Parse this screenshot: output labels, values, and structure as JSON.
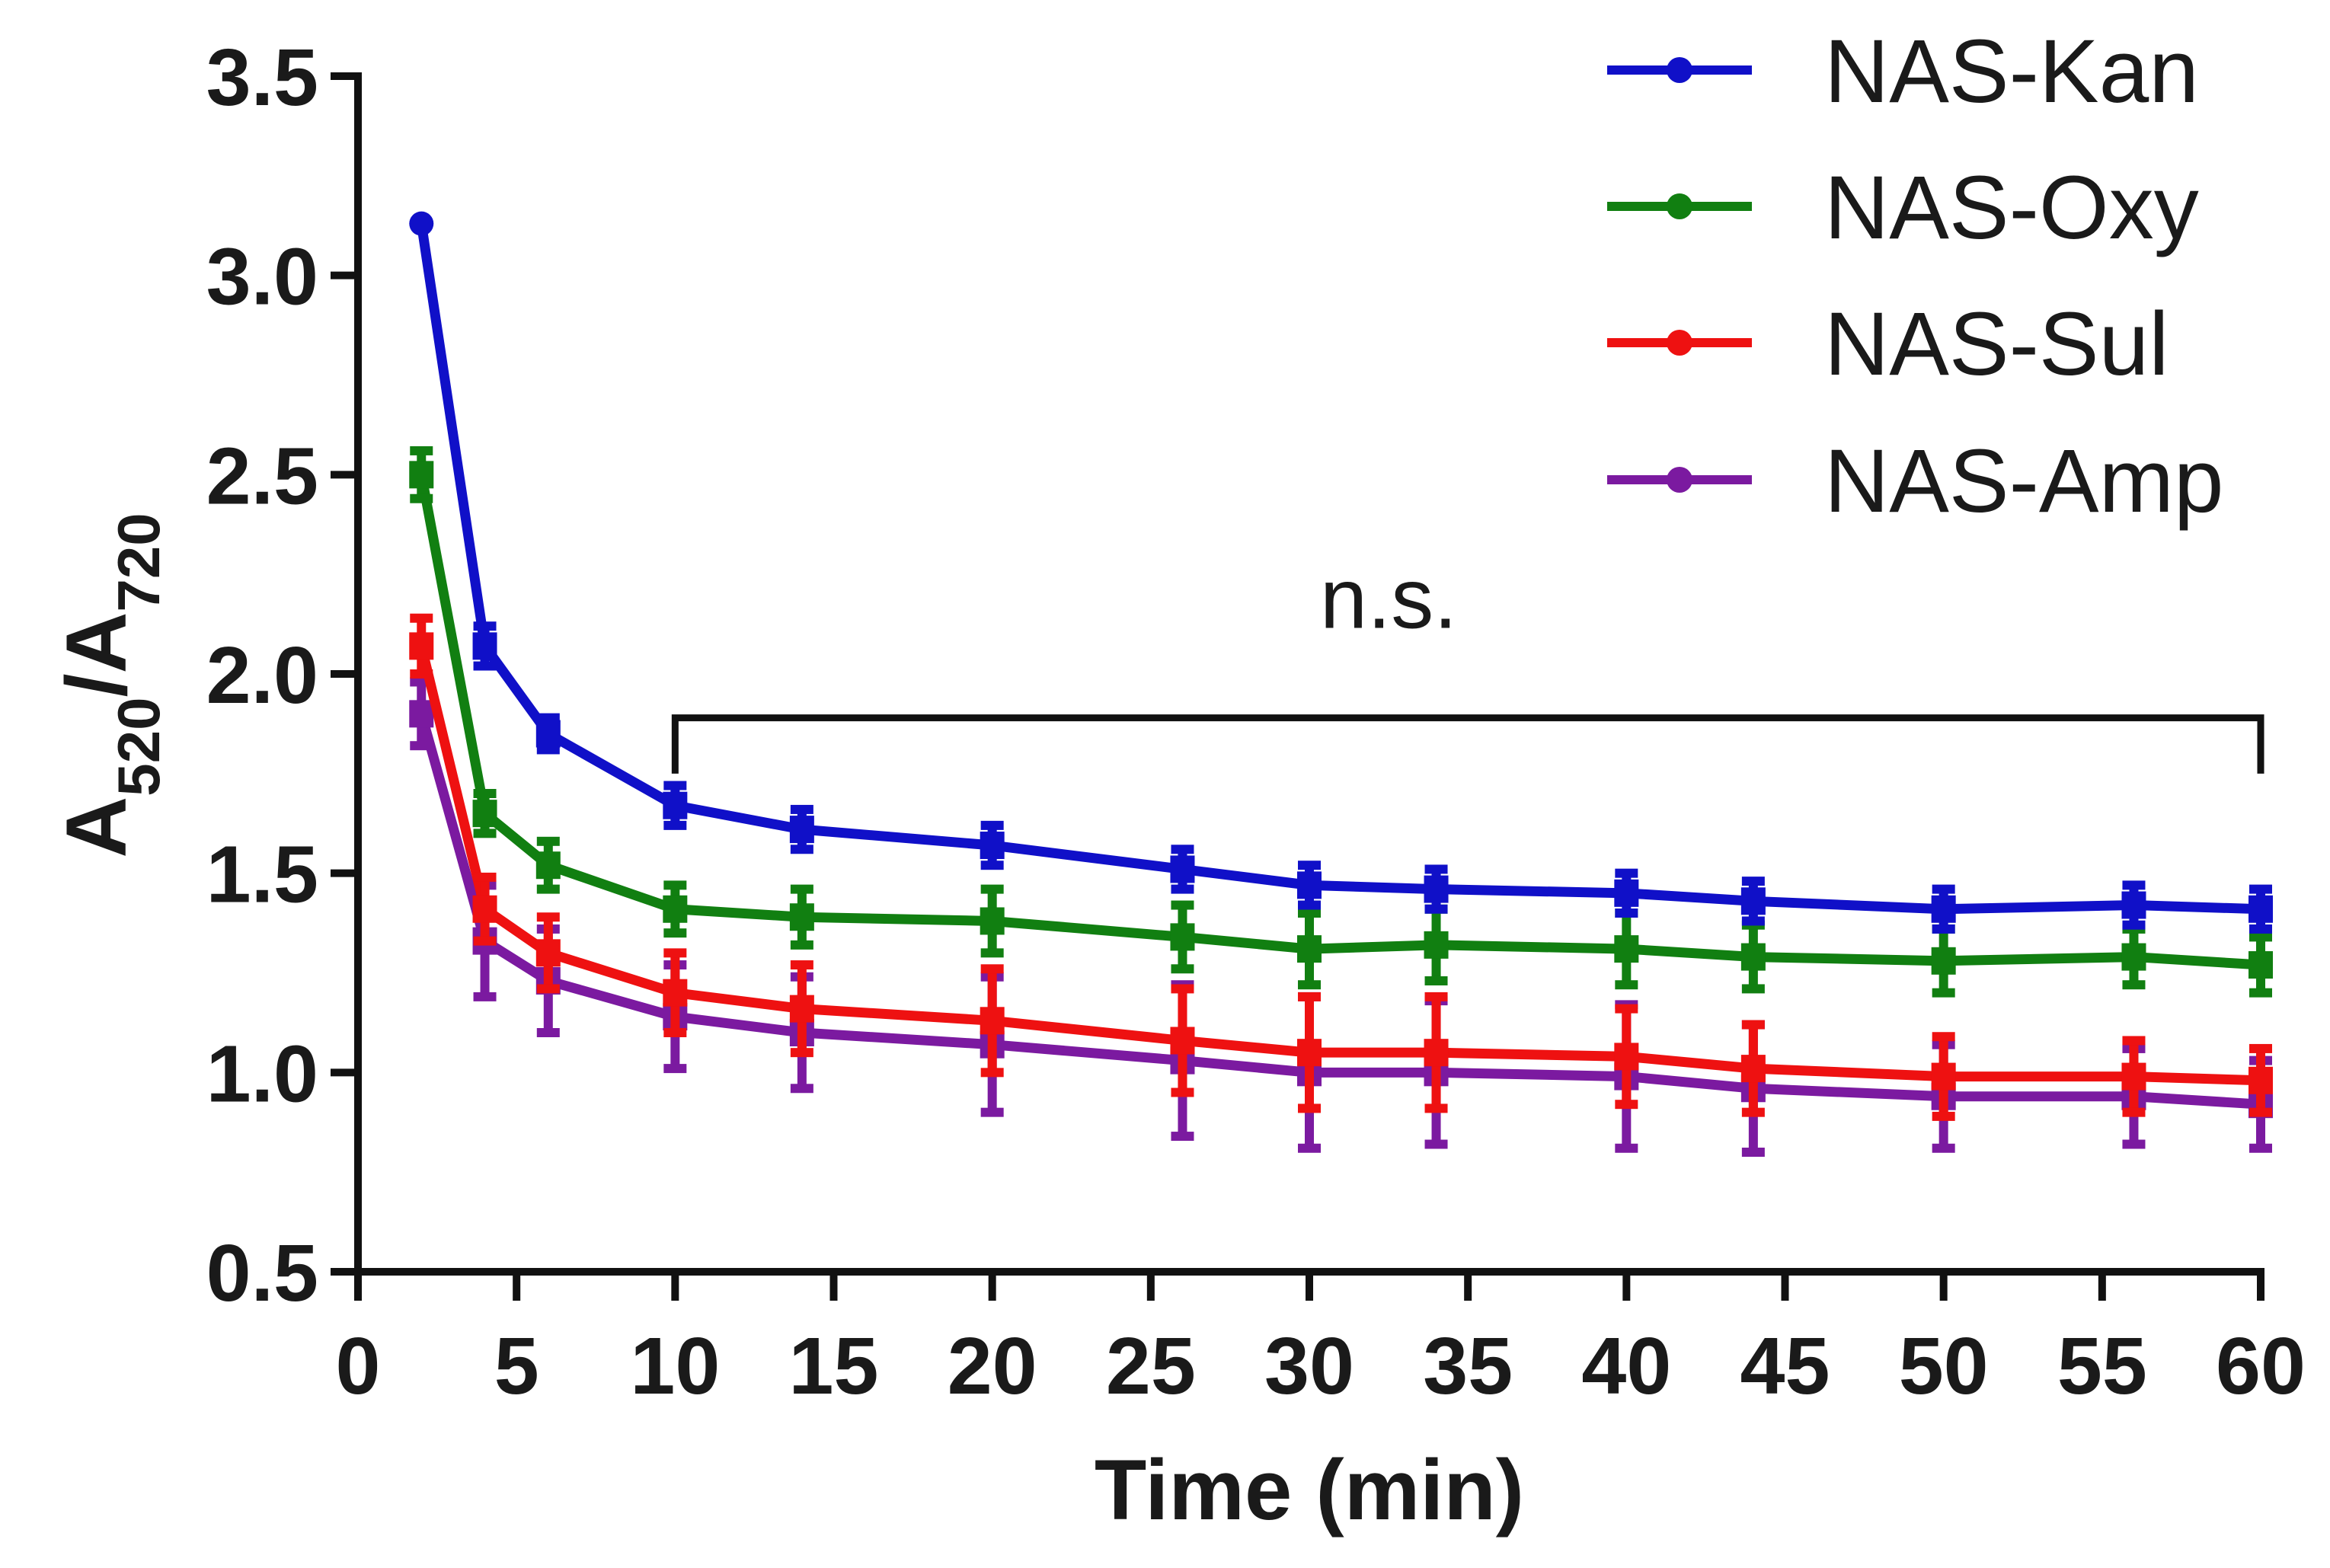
{
  "chart_data": {
    "type": "line",
    "xlabel": "Time (min)",
    "ylabel": {
      "prefix": "A",
      "sub1": "520",
      "slash": "/A",
      "sub2": "720"
    },
    "xlim": [
      0,
      60
    ],
    "ylim": [
      0.5,
      3.5
    ],
    "xticks": [
      "0",
      "5",
      "10",
      "15",
      "20",
      "25",
      "30",
      "35",
      "40",
      "45",
      "50",
      "55",
      "60"
    ],
    "yticks": [
      "0.5",
      "1.0",
      "1.5",
      "2.0",
      "2.5",
      "3.0",
      "3.5"
    ],
    "grid": false,
    "legend_position": "top-right",
    "x": [
      2,
      4,
      6,
      10,
      14,
      20,
      26,
      30,
      34,
      40,
      44,
      50,
      56,
      60
    ],
    "series": [
      {
        "name": "NAS-Kan",
        "color": "#1010c8",
        "values": [
          3.13,
          2.07,
          1.85,
          1.67,
          1.61,
          1.57,
          1.51,
          1.47,
          1.46,
          1.45,
          1.43,
          1.41,
          1.42,
          1.41
        ],
        "errors": [
          0.0,
          0.05,
          0.04,
          0.05,
          0.05,
          0.05,
          0.05,
          0.05,
          0.05,
          0.05,
          0.05,
          0.05,
          0.05,
          0.05
        ]
      },
      {
        "name": "NAS-Oxy",
        "color": "#117f11",
        "values": [
          2.5,
          1.65,
          1.52,
          1.41,
          1.39,
          1.38,
          1.34,
          1.31,
          1.32,
          1.31,
          1.29,
          1.28,
          1.29,
          1.27
        ],
        "errors": [
          0.06,
          0.05,
          0.06,
          0.06,
          0.07,
          0.08,
          0.08,
          0.09,
          0.09,
          0.09,
          0.08,
          0.08,
          0.07,
          0.07
        ]
      },
      {
        "name": "NAS-Sul",
        "color": "#ee1111",
        "values": [
          2.07,
          1.41,
          1.3,
          1.2,
          1.16,
          1.13,
          1.08,
          1.05,
          1.05,
          1.04,
          1.01,
          0.99,
          0.99,
          0.98
        ],
        "errors": [
          0.07,
          0.08,
          0.09,
          0.1,
          0.11,
          0.13,
          0.13,
          0.14,
          0.14,
          0.12,
          0.11,
          0.1,
          0.09,
          0.08
        ]
      },
      {
        "name": "NAS-Amp",
        "color": "#7b1aa0",
        "values": [
          1.9,
          1.33,
          1.23,
          1.14,
          1.1,
          1.07,
          1.03,
          1.0,
          1.0,
          0.99,
          0.96,
          0.94,
          0.94,
          0.92
        ],
        "errors": [
          0.08,
          0.14,
          0.13,
          0.13,
          0.14,
          0.17,
          0.19,
          0.19,
          0.18,
          0.18,
          0.16,
          0.13,
          0.12,
          0.11
        ]
      }
    ],
    "annotation": {
      "text": "n.s.",
      "x_start": 10,
      "x_end": 60,
      "y": 1.89,
      "drop_to": 1.75
    }
  }
}
